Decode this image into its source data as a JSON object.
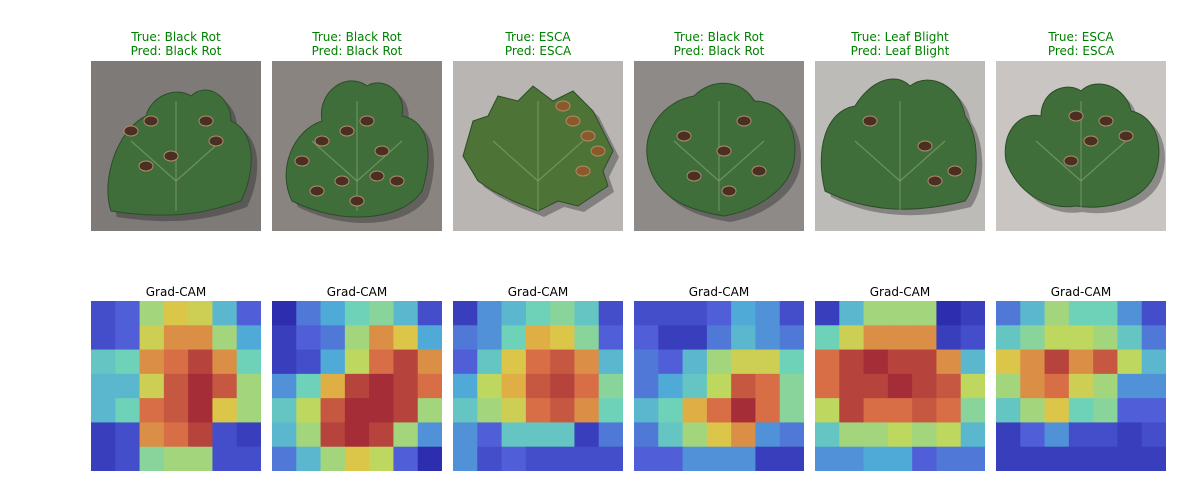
{
  "figure": {
    "panels": [
      {
        "true_label": "True: Black Rot",
        "pred_label": "Pred: Black Rot",
        "cam_title": "Grad-CAM",
        "leaf_shape": "lobed-broad",
        "bg": "#7d7a78"
      },
      {
        "true_label": "True: Black Rot",
        "pred_label": "Pred: Black Rot",
        "cam_title": "Grad-CAM",
        "leaf_shape": "lobed-spotted",
        "bg": "#8a8481"
      },
      {
        "true_label": "True: ESCA",
        "pred_label": "Pred: ESCA",
        "cam_title": "Grad-CAM",
        "leaf_shape": "serrated",
        "bg": "#b9b5b2"
      },
      {
        "true_label": "True: Black Rot",
        "pred_label": "Pred: Black Rot",
        "cam_title": "Grad-CAM",
        "leaf_shape": "heart",
        "bg": "#8e8a88"
      },
      {
        "true_label": "True: Leaf Blight",
        "pred_label": "Pred: Leaf Blight",
        "cam_title": "Grad-CAM",
        "leaf_shape": "cupped",
        "bg": "#bdbbb8"
      },
      {
        "true_label": "True: ESCA",
        "pred_label": "Pred: ESCA",
        "cam_title": "Grad-CAM",
        "leaf_shape": "palmate",
        "bg": "#c8c5c2"
      }
    ],
    "colors": {
      "label_green": "#008000",
      "title_black": "#000000"
    }
  },
  "chart_data": [
    {
      "type": "heatmap",
      "title": "Grad-CAM",
      "grid": "7x7",
      "values": [
        [
          0.1,
          0.15,
          0.55,
          0.7,
          0.65,
          0.35,
          0.15
        ],
        [
          0.1,
          0.15,
          0.65,
          0.8,
          0.8,
          0.55,
          0.3
        ],
        [
          0.4,
          0.45,
          0.8,
          0.85,
          0.95,
          0.8,
          0.45
        ],
        [
          0.35,
          0.35,
          0.65,
          0.9,
          1.0,
          0.9,
          0.55
        ],
        [
          0.35,
          0.45,
          0.85,
          0.9,
          1.0,
          0.7,
          0.55
        ],
        [
          0.05,
          0.1,
          0.8,
          0.85,
          0.95,
          0.1,
          0.05
        ],
        [
          0.05,
          0.1,
          0.5,
          0.55,
          0.55,
          0.1,
          0.1
        ]
      ]
    },
    {
      "type": "heatmap",
      "title": "Grad-CAM",
      "grid": "7x7",
      "values": [
        [
          0.0,
          0.2,
          0.3,
          0.45,
          0.5,
          0.35,
          0.1
        ],
        [
          0.05,
          0.15,
          0.2,
          0.55,
          0.8,
          0.7,
          0.3
        ],
        [
          0.05,
          0.1,
          0.3,
          0.6,
          0.85,
          0.95,
          0.8
        ],
        [
          0.25,
          0.45,
          0.75,
          0.95,
          1.0,
          0.95,
          0.85
        ],
        [
          0.4,
          0.6,
          0.9,
          1.0,
          1.0,
          0.95,
          0.55
        ],
        [
          0.35,
          0.55,
          0.95,
          1.0,
          0.95,
          0.55,
          0.25
        ],
        [
          0.2,
          0.35,
          0.55,
          0.7,
          0.6,
          0.15,
          0.0
        ]
      ]
    },
    {
      "type": "heatmap",
      "title": "Grad-CAM",
      "grid": "7x7",
      "values": [
        [
          0.05,
          0.25,
          0.35,
          0.45,
          0.5,
          0.4,
          0.1
        ],
        [
          0.2,
          0.25,
          0.45,
          0.75,
          0.7,
          0.5,
          0.15
        ],
        [
          0.15,
          0.4,
          0.7,
          0.85,
          0.9,
          0.8,
          0.35
        ],
        [
          0.3,
          0.6,
          0.75,
          0.9,
          0.95,
          0.85,
          0.5
        ],
        [
          0.4,
          0.55,
          0.65,
          0.85,
          0.9,
          0.8,
          0.45
        ],
        [
          0.25,
          0.15,
          0.4,
          0.4,
          0.4,
          0.05,
          0.2
        ],
        [
          0.25,
          0.1,
          0.15,
          0.1,
          0.1,
          0.1,
          0.1
        ]
      ]
    },
    {
      "type": "heatmap",
      "title": "Grad-CAM",
      "grid": "7x7",
      "values": [
        [
          0.1,
          0.1,
          0.1,
          0.15,
          0.3,
          0.25,
          0.1
        ],
        [
          0.15,
          0.05,
          0.05,
          0.2,
          0.35,
          0.25,
          0.2
        ],
        [
          0.2,
          0.15,
          0.35,
          0.55,
          0.65,
          0.65,
          0.45
        ],
        [
          0.2,
          0.3,
          0.4,
          0.6,
          0.9,
          0.85,
          0.5
        ],
        [
          0.35,
          0.45,
          0.75,
          0.85,
          1.0,
          0.85,
          0.5
        ],
        [
          0.2,
          0.4,
          0.55,
          0.7,
          0.8,
          0.25,
          0.2
        ],
        [
          0.15,
          0.15,
          0.25,
          0.25,
          0.25,
          0.05,
          0.05
        ]
      ]
    },
    {
      "type": "heatmap",
      "title": "Grad-CAM",
      "grid": "7x7",
      "values": [
        [
          0.05,
          0.35,
          0.55,
          0.55,
          0.55,
          0.0,
          0.05
        ],
        [
          0.45,
          0.65,
          0.8,
          0.8,
          0.8,
          0.05,
          0.1
        ],
        [
          0.85,
          0.95,
          1.0,
          0.95,
          0.95,
          0.8,
          0.35
        ],
        [
          0.85,
          0.95,
          0.95,
          1.0,
          0.95,
          0.9,
          0.6
        ],
        [
          0.6,
          0.95,
          0.85,
          0.85,
          0.9,
          0.85,
          0.5
        ],
        [
          0.4,
          0.55,
          0.55,
          0.6,
          0.55,
          0.6,
          0.35
        ],
        [
          0.25,
          0.25,
          0.3,
          0.3,
          0.15,
          0.2,
          0.2
        ]
      ]
    },
    {
      "type": "heatmap",
      "title": "Grad-CAM",
      "grid": "7x7",
      "values": [
        [
          0.2,
          0.35,
          0.55,
          0.45,
          0.45,
          0.25,
          0.1
        ],
        [
          0.4,
          0.5,
          0.6,
          0.6,
          0.55,
          0.4,
          0.2
        ],
        [
          0.7,
          0.8,
          0.95,
          0.8,
          0.9,
          0.6,
          0.35
        ],
        [
          0.55,
          0.8,
          0.85,
          0.65,
          0.55,
          0.25,
          0.25
        ],
        [
          0.4,
          0.55,
          0.7,
          0.45,
          0.5,
          0.15,
          0.15
        ],
        [
          0.05,
          0.15,
          0.25,
          0.1,
          0.1,
          0.05,
          0.1
        ],
        [
          0.05,
          0.05,
          0.05,
          0.05,
          0.05,
          0.05,
          0.05
        ]
      ]
    }
  ]
}
